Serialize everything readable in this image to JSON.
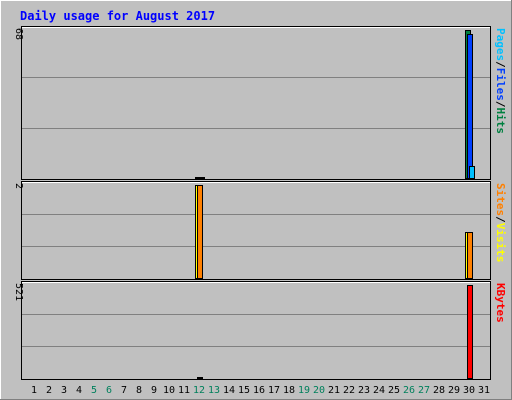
{
  "chart_data": {
    "type": "bar",
    "title": "Daily usage for August 2017",
    "x": [
      1,
      2,
      3,
      4,
      5,
      6,
      7,
      8,
      9,
      10,
      11,
      12,
      13,
      14,
      15,
      16,
      17,
      18,
      19,
      20,
      21,
      22,
      23,
      24,
      25,
      26,
      27,
      28,
      29,
      30,
      31
    ],
    "weekend_days": [
      5,
      6,
      12,
      13,
      19,
      20,
      26,
      27
    ],
    "panels": [
      {
        "id": "hits-panel",
        "max_label": "68",
        "max_value": 68,
        "legend": [
          {
            "text": "Pages",
            "color": "#00c0ff"
          },
          {
            "text": "/",
            "color": "#000000"
          },
          {
            "text": "Files",
            "color": "#0040ff"
          },
          {
            "text": "/",
            "color": "#000000"
          },
          {
            "text": "Hits",
            "color": "#008040"
          }
        ],
        "series": [
          {
            "name": "Hits",
            "color": "#008040",
            "offset": 0,
            "values": {
              "12": 1,
              "30": 68
            }
          },
          {
            "name": "Files",
            "color": "#0040ff",
            "offset": 1,
            "values": {
              "30": 66
            }
          },
          {
            "name": "Pages",
            "color": "#00c0ff",
            "offset": 2,
            "values": {
              "12": 1,
              "30": 6
            }
          }
        ]
      },
      {
        "id": "visits-panel",
        "max_label": "2",
        "max_value": 2,
        "legend": [
          {
            "text": "Sites",
            "color": "#ff8000"
          },
          {
            "text": "/",
            "color": "#000000"
          },
          {
            "text": "Visits",
            "color": "#ffff00"
          }
        ],
        "series": [
          {
            "name": "Visits",
            "color": "#ffff00",
            "offset": 0,
            "values": {
              "12": 2,
              "30": 1
            }
          },
          {
            "name": "Sites",
            "color": "#ff8000",
            "offset": 1,
            "values": {
              "12": 2,
              "30": 1
            }
          }
        ]
      },
      {
        "id": "kbytes-panel",
        "max_label": "521",
        "max_value": 521,
        "legend": [
          {
            "text": "KBytes",
            "color": "#ff0000"
          }
        ],
        "series": [
          {
            "name": "KBytes",
            "color": "#ff0000",
            "offset": 1,
            "values": {
              "12": 2,
              "30": 521
            }
          }
        ]
      }
    ]
  }
}
